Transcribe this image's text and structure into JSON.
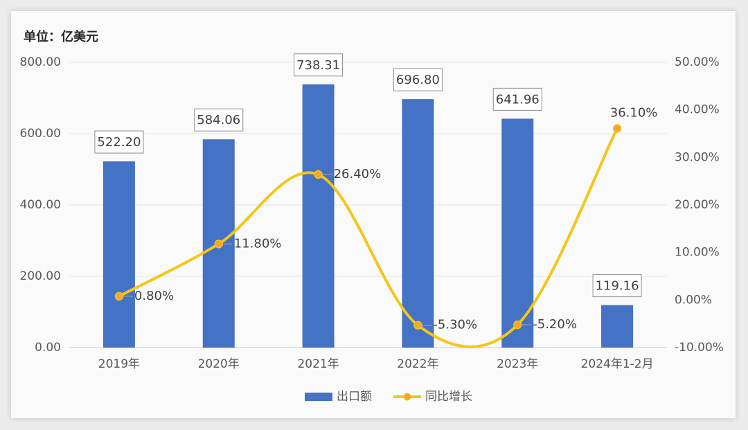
{
  "chart_data": {
    "type": "bar-line",
    "title": "单位：亿美元",
    "categories": [
      "2019年",
      "2020年",
      "2021年",
      "2022年",
      "2023年",
      "2024年1-2月"
    ],
    "series": [
      {
        "name": "出口额",
        "type": "bar",
        "color": "#4472c4",
        "values": [
          522.2,
          584.06,
          738.31,
          696.8,
          641.96,
          119.16
        ],
        "value_labels": [
          "522.20",
          "584.06",
          "738.31",
          "696.80",
          "641.96",
          "119.16"
        ]
      },
      {
        "name": "同比增长",
        "type": "line",
        "axis": "y2",
        "color": "#f5c518",
        "marker_color": "#f0a830",
        "values": [
          0.8,
          11.8,
          26.4,
          -5.3,
          -5.2,
          36.1
        ],
        "value_labels": [
          "0.80%",
          "11.80%",
          "26.40%",
          "-5.30%",
          "-5.20%",
          "36.10%"
        ]
      }
    ],
    "ylim": [
      0,
      800
    ],
    "yticks": [
      {
        "value": 0,
        "label": "0.00"
      },
      {
        "value": 200,
        "label": "200.00"
      },
      {
        "value": 400,
        "label": "400.00"
      },
      {
        "value": 600,
        "label": "600.00"
      },
      {
        "value": 800,
        "label": "800.00"
      }
    ],
    "y2lim": [
      -10,
      50
    ],
    "y2ticks": [
      {
        "value": -10,
        "label": "-10.00%"
      },
      {
        "value": 0,
        "label": "0.00%"
      },
      {
        "value": 10,
        "label": "10.00%"
      },
      {
        "value": 20,
        "label": "20.00%"
      },
      {
        "value": 30,
        "label": "30.00%"
      },
      {
        "value": 40,
        "label": "40.00%"
      },
      {
        "value": 50,
        "label": "50.00%"
      }
    ],
    "grid": true,
    "legend": "bottom"
  }
}
